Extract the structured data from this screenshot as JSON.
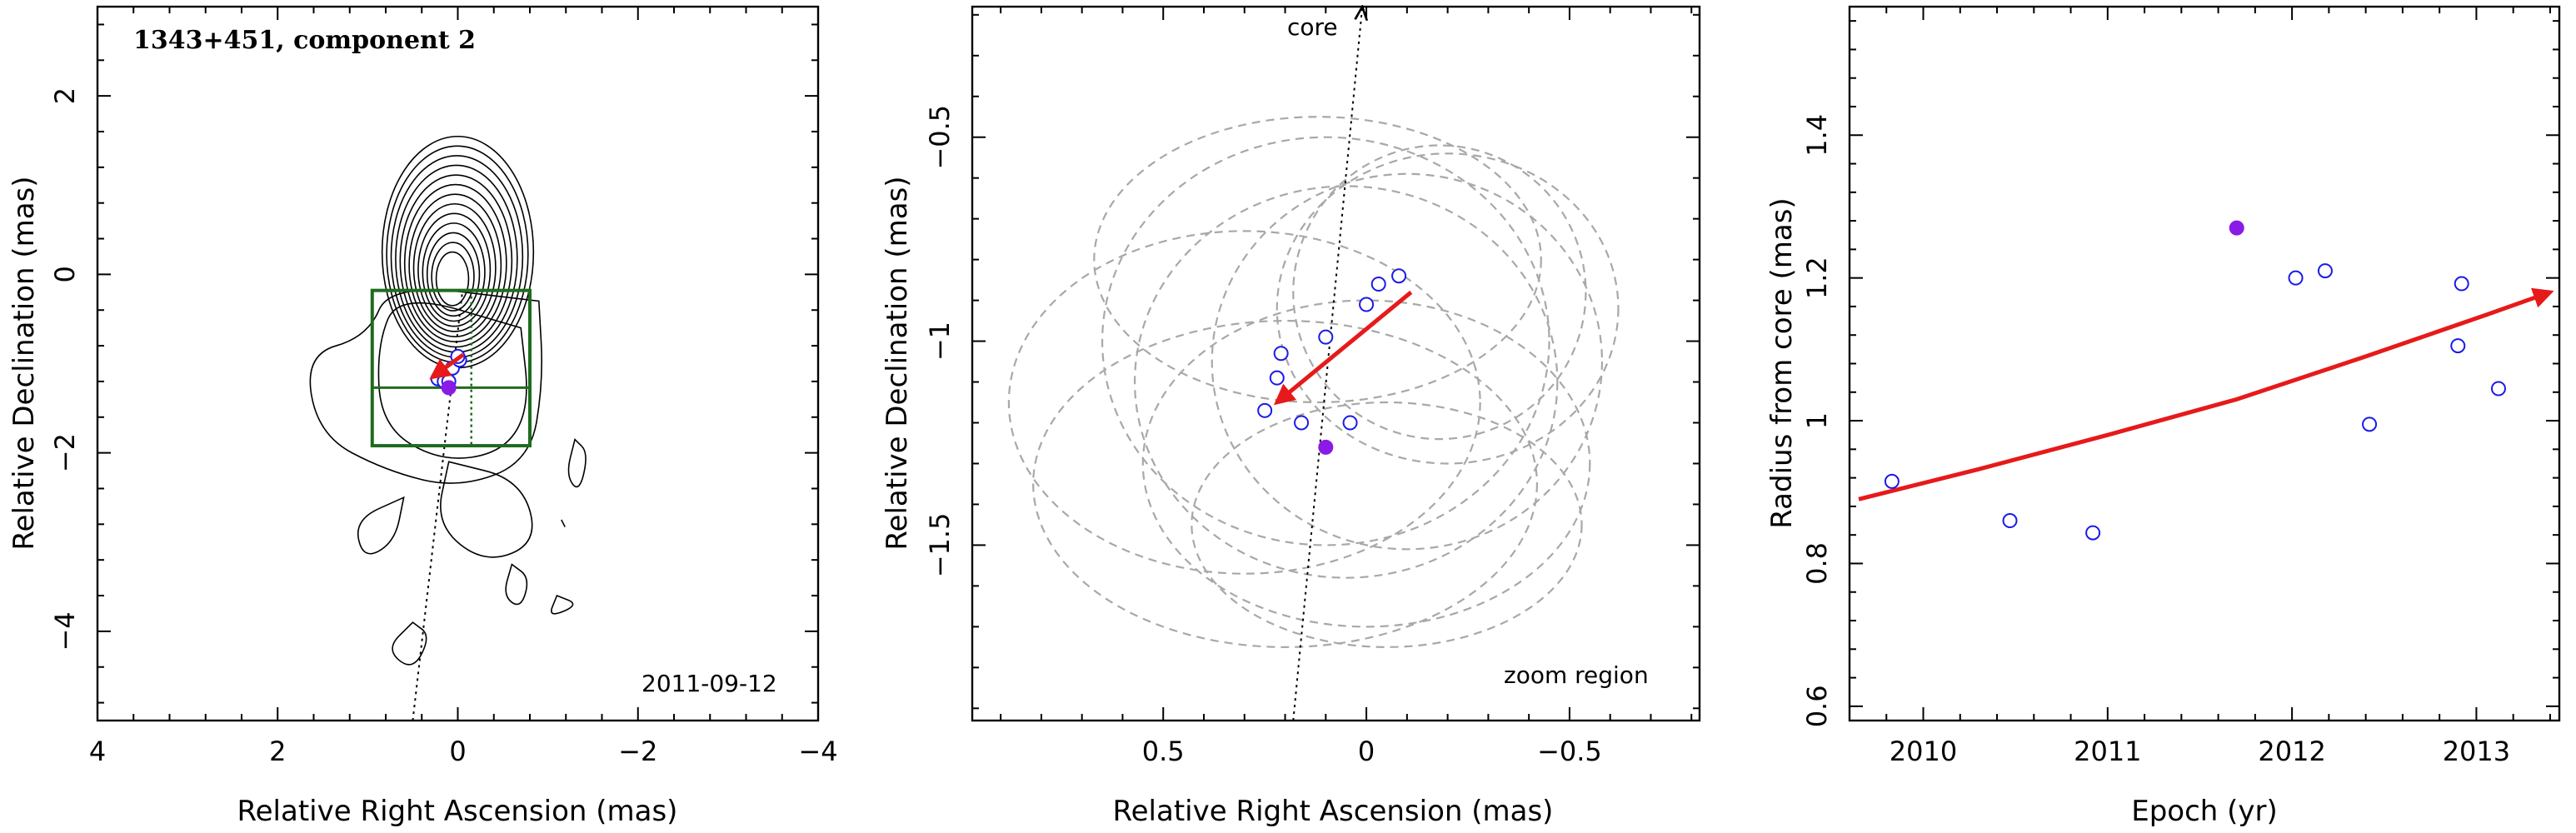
{
  "colors": {
    "open_marker": "#1a1ae6",
    "filled_marker": "#8a1ae6",
    "arrow": "#e61a1a",
    "zoom_box": "#1f6b1f",
    "ellipses": "#a8a8a8",
    "contours": "#000000"
  },
  "chart_data": [
    {
      "type": "scatter",
      "title": "1343+451, component 2",
      "xlabel": "Relative Right Ascension (mas)",
      "ylabel": "Relative Declination (mas)",
      "xlim": [
        4,
        -4
      ],
      "ylim": [
        -5,
        3
      ],
      "xticks": [
        4,
        2,
        0,
        -2,
        -4
      ],
      "xticklabels": [
        "4",
        "2",
        "0",
        "−2",
        "−4"
      ],
      "yticks": [
        2,
        0,
        -2,
        -4
      ],
      "yticklabels": [
        "2",
        "0",
        "−2",
        "−4"
      ],
      "annotation": "2011-09-12",
      "contours": "radio intensity contours (black)",
      "jet_axis": {
        "from": [
          0.5,
          -5.0
        ],
        "to": [
          -0.05,
          -0.2
        ]
      },
      "zoom_box": {
        "x": [
          0.95,
          -0.8
        ],
        "y": [
          -1.92,
          -0.18
        ],
        "cross_x": -0.15,
        "cross_y": -1.27
      },
      "points_open": {
        "x": [
          0.22,
          0.14,
          0.06,
          -0.02,
          0.0,
          0.15,
          0.1
        ],
        "y": [
          -1.17,
          -1.13,
          -1.05,
          -0.96,
          -0.92,
          -1.2,
          -1.2
        ]
      },
      "points_filled": {
        "x": [
          0.1
        ],
        "y": [
          -1.27
        ]
      },
      "arrow": {
        "from": [
          -0.06,
          -0.9
        ],
        "to": [
          0.28,
          -1.15
        ]
      }
    },
    {
      "type": "scatter",
      "xlabel": "Relative Right Ascension (mas)",
      "ylabel": "Relative Declination (mas)",
      "xlim": [
        0.97,
        -0.82
      ],
      "ylim": [
        -1.93,
        -0.18
      ],
      "xticks": [
        0.5,
        0,
        -0.5
      ],
      "xticklabels": [
        "0.5",
        "0",
        "−0.5"
      ],
      "yticks": [
        -0.5,
        -1,
        -1.5
      ],
      "yticklabels": [
        "−0.5",
        "−1",
        "−1.5"
      ],
      "core_label": "core",
      "zoom_label": "zoom region",
      "jet_axis": {
        "from": [
          0.18,
          -1.93
        ],
        "to": [
          0.01,
          -0.18
        ]
      },
      "points_open": {
        "x": [
          0.25,
          0.22,
          0.21,
          0.1,
          0.16,
          0.04,
          0.0,
          -0.03,
          -0.08
        ],
        "y": [
          -1.17,
          -1.09,
          -1.03,
          -0.99,
          -1.2,
          -1.2,
          -0.91,
          -0.86,
          -0.84
        ]
      },
      "points_filled": {
        "x": [
          0.1
        ],
        "y": [
          -1.26
        ]
      },
      "arrow": {
        "from": [
          -0.11,
          -0.88
        ],
        "to": [
          0.22,
          -1.15
        ]
      },
      "ellipses": [
        {
          "cx": 0.1,
          "cy": -1.0,
          "rx": 0.55,
          "ry": 0.5
        },
        {
          "cx": 0.05,
          "cy": -1.1,
          "rx": 0.52,
          "ry": 0.48
        },
        {
          "cx": -0.1,
          "cy": -1.05,
          "rx": 0.48,
          "ry": 0.46
        },
        {
          "cx": -0.18,
          "cy": -0.88,
          "rx": 0.36,
          "ry": 0.36
        },
        {
          "cx": -0.2,
          "cy": -0.92,
          "rx": 0.42,
          "ry": 0.38
        },
        {
          "cx": 0.3,
          "cy": -1.15,
          "rx": 0.58,
          "ry": 0.42
        },
        {
          "cx": 0.2,
          "cy": -1.35,
          "rx": 0.62,
          "ry": 0.4
        },
        {
          "cx": 0.0,
          "cy": -1.3,
          "rx": 0.55,
          "ry": 0.4
        },
        {
          "cx": 0.12,
          "cy": -0.8,
          "rx": 0.55,
          "ry": 0.35
        },
        {
          "cx": -0.05,
          "cy": -1.45,
          "rx": 0.48,
          "ry": 0.3
        }
      ]
    },
    {
      "type": "scatter",
      "xlabel": "Epoch (yr)",
      "ylabel": "Radius from core (mas)",
      "xlim": [
        2009.6,
        2013.45
      ],
      "ylim": [
        0.58,
        1.58
      ],
      "xticks": [
        2010,
        2011,
        2012,
        2013
      ],
      "xticklabels": [
        "2010",
        "2011",
        "2012",
        "2013"
      ],
      "yticks": [
        0.6,
        0.8,
        1,
        1.2,
        1.4
      ],
      "yticklabels": [
        "0.6",
        "0.8",
        "1",
        "1.2",
        "1.4"
      ],
      "points_open": {
        "x": [
          2009.83,
          2010.47,
          2010.92,
          2012.02,
          2012.18,
          2012.42,
          2012.9,
          2012.92,
          2013.12
        ],
        "y": [
          0.915,
          0.86,
          0.843,
          1.2,
          1.21,
          0.995,
          1.105,
          1.192,
          1.045
        ]
      },
      "points_filled": {
        "x": [
          2011.7
        ],
        "y": [
          1.27
        ]
      },
      "fit": {
        "x": [
          2009.65,
          2010.3,
          2011.0,
          2011.7,
          2012.4,
          2013.05,
          2013.4
        ],
        "y": [
          0.89,
          0.932,
          0.98,
          1.03,
          1.09,
          1.148,
          1.18
        ]
      }
    }
  ]
}
